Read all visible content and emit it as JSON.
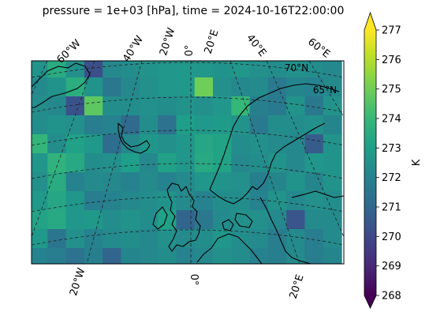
{
  "chart_data": {
    "type": "heatmap",
    "title": "pressure = 1e+03 [hPa], time = 2024-10-16T22:00:00",
    "projection": "polar-conic",
    "colormap": "viridis",
    "colorbar": {
      "label": "K",
      "min": 268,
      "max": 277,
      "ticks": [
        "268",
        "269",
        "270",
        "271",
        "272",
        "273",
        "274",
        "275",
        "276",
        "277"
      ],
      "extend": "both"
    },
    "gridlines": "dashed",
    "meridian_labels_top": [
      "60°W",
      "40°W",
      "20°W",
      "0°",
      "20°E",
      "40°E",
      "60°E"
    ],
    "meridian_labels_bottom": [
      "20°W",
      "0°",
      "20°E"
    ],
    "parallel_labels": [
      "70°N",
      "65°N"
    ],
    "grid": [
      [
        272.6,
        273.5,
        272.5,
        270.2,
        272.2,
        272.4,
        272.6,
        272.7,
        272.8,
        272.7,
        272.6,
        272.7,
        272.5,
        272.4,
        272.5,
        272.4,
        272.2
      ],
      [
        272.3,
        272.6,
        273.6,
        272.6,
        271.6,
        272.2,
        272.5,
        272.7,
        272.8,
        275.0,
        272.5,
        272.2,
        272.3,
        271.7,
        272.1,
        272.0,
        272.3
      ],
      [
        272.4,
        272.2,
        270.3,
        274.7,
        272.4,
        272.4,
        272.5,
        272.4,
        272.6,
        272.5,
        272.7,
        274.0,
        271.9,
        271.7,
        272.6,
        271.6,
        272.6
      ],
      [
        272.4,
        272.6,
        272.5,
        271.8,
        272.0,
        271.1,
        272.4,
        271.4,
        273.0,
        272.8,
        272.9,
        272.6,
        271.7,
        272.4,
        272.4,
        272.5,
        272.1
      ],
      [
        273.9,
        272.4,
        273.1,
        272.8,
        271.2,
        272.2,
        272.7,
        272.5,
        272.7,
        273.3,
        273.2,
        272.4,
        272.5,
        272.3,
        272.2,
        270.6,
        272.6
      ],
      [
        272.7,
        273.8,
        273.4,
        272.4,
        272.5,
        273.0,
        272.2,
        273.1,
        272.7,
        273.4,
        273.2,
        272.2,
        272.4,
        272.6,
        272.2,
        272.7,
        272.6
      ],
      [
        272.5,
        273.5,
        272.0,
        272.3,
        272.2,
        272.0,
        272.3,
        272.0,
        272.3,
        272.7,
        272.6,
        272.5,
        271.9,
        272.1,
        272.6,
        272.1,
        272.6
      ],
      [
        272.8,
        273.3,
        272.7,
        271.8,
        272.0,
        272.2,
        272.4,
        272.6,
        272.3,
        272.0,
        272.4,
        272.4,
        272.0,
        272.6,
        272.2,
        272.5,
        272.4
      ],
      [
        273.2,
        273.4,
        272.7,
        272.8,
        272.4,
        272.6,
        272.4,
        273.1,
        270.9,
        271.6,
        272.3,
        272.5,
        272.5,
        272.2,
        270.4,
        272.3,
        272.3
      ],
      [
        272.8,
        271.5,
        272.5,
        272.0,
        272.3,
        272.4,
        272.2,
        272.5,
        272.3,
        272.4,
        272.7,
        272.4,
        272.3,
        271.8,
        272.3,
        271.8,
        272.3
      ],
      [
        272.0,
        271.8,
        271.4,
        271.9,
        270.9,
        272.1,
        272.2,
        272.4,
        272.0,
        272.2,
        272.5,
        272.4,
        272.0,
        271.9,
        272.3,
        271.8,
        272.1
      ]
    ]
  }
}
